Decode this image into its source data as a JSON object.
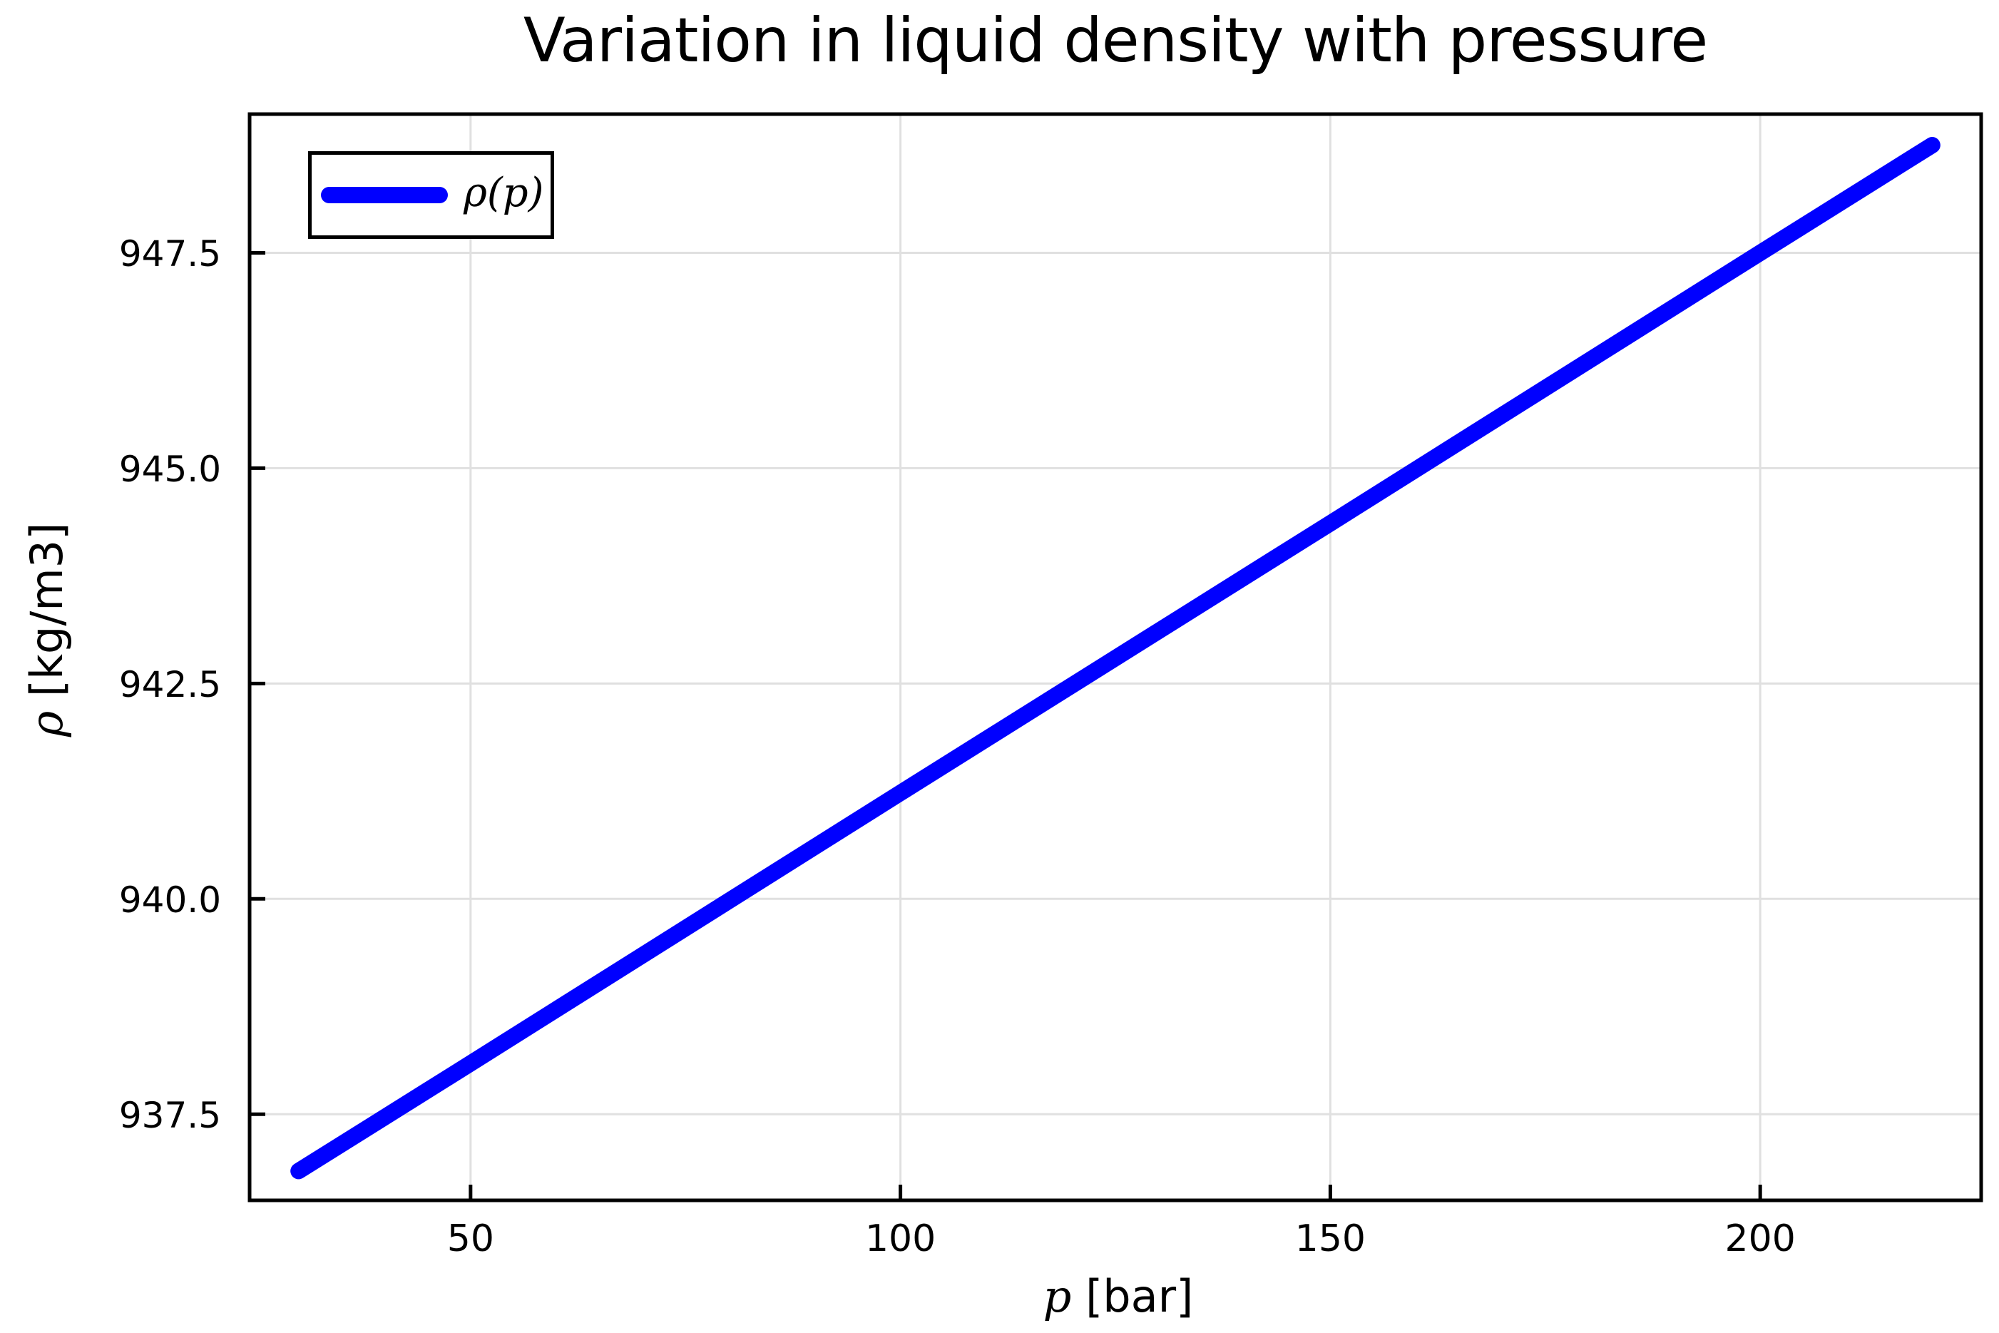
{
  "title": "Variation in liquid density with pressure",
  "axes": {
    "xlabel": {
      "symbol": "p",
      "unit": " [bar]"
    },
    "ylabel": {
      "symbol": "ρ",
      "unit": " [kg/m3]"
    }
  },
  "legend": {
    "entries": [
      {
        "label": "ρ(p)",
        "color": "#0000ff"
      }
    ]
  },
  "chart_data": {
    "type": "line",
    "title": "Variation in liquid density with pressure",
    "xlabel": "p [bar]",
    "ylabel": "ρ [kg/m3]",
    "xlim": [
      24.3,
      225.7
    ],
    "ylim": [
      936.5,
      949.11
    ],
    "grid": true,
    "legend_position": "top-left",
    "xticks": {
      "values": [
        50,
        100,
        150,
        200
      ],
      "labels": [
        "50",
        "100",
        "150",
        "200"
      ]
    },
    "yticks": {
      "values": [
        937.5,
        940.0,
        942.5,
        945.0,
        947.5
      ],
      "labels": [
        "937.5",
        "940.0",
        "942.5",
        "945.0",
        "947.5"
      ]
    },
    "series": [
      {
        "name": "ρ(p)",
        "color": "#0000ff",
        "points": [
          [
            30,
            936.84
          ],
          [
            50,
            938.09
          ],
          [
            100,
            941.23
          ],
          [
            150,
            944.36
          ],
          [
            200,
            947.5
          ],
          [
            220,
            948.75
          ]
        ]
      }
    ],
    "colors": {
      "line": "#0000ff",
      "grid": "#e0e0e0",
      "spine": "#000000",
      "background": "#ffffff"
    }
  }
}
